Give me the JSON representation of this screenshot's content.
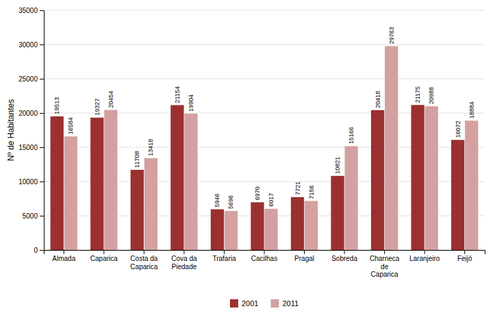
{
  "chart_data": {
    "type": "bar",
    "categories": [
      "Almada",
      "Caparica",
      "Costa da\nCaparica",
      "Cova da\nPiedade",
      "Trafaria",
      "Cacilhas",
      "Pragal",
      "Sobreda",
      "Charneca\nde\nCaparica",
      "Laranjeiro",
      "Feijó"
    ],
    "series": [
      {
        "name": "2001",
        "color": "#9b3030",
        "values": [
          19513,
          19327,
          11708,
          21154,
          5946,
          6970,
          7721,
          10821,
          20418,
          21175,
          16072
        ]
      },
      {
        "name": "2011",
        "color": "#d4a0a0",
        "values": [
          16584,
          20454,
          13418,
          19904,
          5696,
          6017,
          7156,
          15166,
          29763,
          20988,
          18884
        ]
      }
    ],
    "ylabel": "Nº de Habitantes",
    "ylim": [
      0,
      35000
    ],
    "yticks": [
      0,
      5000,
      10000,
      15000,
      20000,
      25000,
      30000,
      35000
    ],
    "grid": true,
    "legend": "bottom",
    "data_labels": true
  }
}
